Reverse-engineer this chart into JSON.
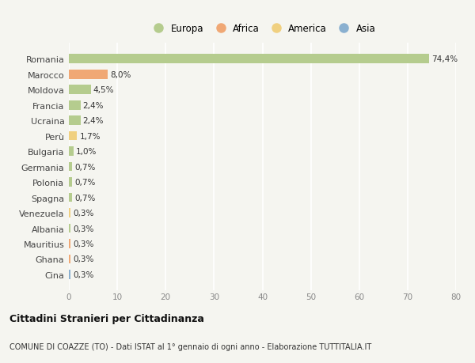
{
  "countries": [
    "Romania",
    "Marocco",
    "Moldova",
    "Francia",
    "Ucraina",
    "Perù",
    "Bulgaria",
    "Germania",
    "Polonia",
    "Spagna",
    "Venezuela",
    "Albania",
    "Mauritius",
    "Ghana",
    "Cina"
  ],
  "values": [
    74.4,
    8.0,
    4.5,
    2.4,
    2.4,
    1.7,
    1.0,
    0.7,
    0.7,
    0.7,
    0.3,
    0.3,
    0.3,
    0.3,
    0.3
  ],
  "labels": [
    "74,4%",
    "8,0%",
    "4,5%",
    "2,4%",
    "2,4%",
    "1,7%",
    "1,0%",
    "0,7%",
    "0,7%",
    "0,7%",
    "0,3%",
    "0,3%",
    "0,3%",
    "0,3%",
    "0,3%"
  ],
  "continents": [
    "Europa",
    "Africa",
    "Europa",
    "Europa",
    "Europa",
    "America",
    "Europa",
    "Europa",
    "Europa",
    "Europa",
    "America",
    "Europa",
    "Africa",
    "Africa",
    "Asia"
  ],
  "colors": {
    "Europa": "#b5cc8e",
    "Africa": "#f0a875",
    "America": "#f0d080",
    "Asia": "#8ab0d0"
  },
  "xlim": [
    0,
    80
  ],
  "xticks": [
    0,
    10,
    20,
    30,
    40,
    50,
    60,
    70,
    80
  ],
  "title": "Cittadini Stranieri per Cittadinanza",
  "subtitle": "COMUNE DI COAZZE (TO) - Dati ISTAT al 1° gennaio di ogni anno - Elaborazione TUTTITALIA.IT",
  "background_color": "#f5f5f0",
  "grid_color": "#ffffff",
  "bar_height": 0.6,
  "legend_order": [
    "Europa",
    "Africa",
    "America",
    "Asia"
  ]
}
